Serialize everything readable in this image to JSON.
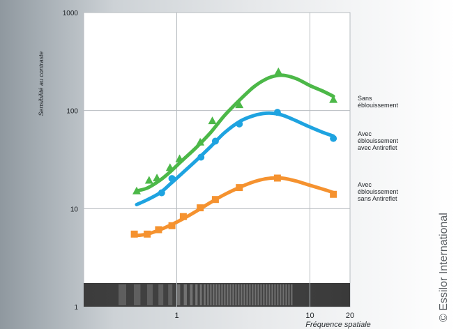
{
  "chart_data": {
    "type": "line",
    "xlabel": "Fréquence spatiale",
    "ylabel": "Sensibilité au contraste",
    "x_scale": "log",
    "y_scale": "log",
    "xlim": [
      0.2,
      20
    ],
    "ylim": [
      1,
      1000
    ],
    "x_ticks": [
      {
        "value": 1,
        "label": "1"
      },
      {
        "value": 10,
        "label": "10"
      },
      {
        "value": 20,
        "label": "20"
      }
    ],
    "y_ticks": [
      {
        "value": 1,
        "label": "1"
      },
      {
        "value": 10,
        "label": "10"
      },
      {
        "value": 100,
        "label": "100"
      },
      {
        "value": 1000,
        "label": "1000"
      }
    ],
    "grid": true,
    "series": [
      {
        "name_lines": [
          "Sans",
          "éblouissement"
        ],
        "color": "#4cb848",
        "marker": "triangle",
        "points": [
          [
            0.5,
            15.2
          ],
          [
            0.62,
            19.5
          ],
          [
            0.71,
            20.6
          ],
          [
            0.89,
            26.3
          ],
          [
            1.05,
            32.4
          ],
          [
            1.5,
            47.8
          ],
          [
            1.85,
            79
          ],
          [
            2.95,
            115
          ],
          [
            5.8,
            250
          ],
          [
            15,
            130
          ]
        ],
        "curve": [
          [
            0.5,
            15.2
          ],
          [
            0.6,
            16.2
          ],
          [
            0.75,
            19.5
          ],
          [
            0.9,
            24
          ],
          [
            1.1,
            31
          ],
          [
            1.4,
            42
          ],
          [
            1.8,
            60
          ],
          [
            2.3,
            90
          ],
          [
            3,
            130
          ],
          [
            3.8,
            175
          ],
          [
            4.7,
            210
          ],
          [
            5.6,
            227
          ],
          [
            6.5,
            228
          ],
          [
            8,
            210
          ],
          [
            10,
            180
          ],
          [
            12.5,
            158
          ],
          [
            15,
            140
          ]
        ]
      },
      {
        "name_lines": [
          "Avec",
          "éblouissement",
          "avec Antireflet"
        ],
        "color": "#1ea3e0",
        "marker": "circle",
        "points": [
          [
            0.77,
            14.5
          ],
          [
            0.92,
            20.3
          ],
          [
            1.52,
            33.5
          ],
          [
            1.95,
            48.8
          ],
          [
            2.95,
            73
          ],
          [
            5.7,
            96
          ],
          [
            15,
            52
          ]
        ],
        "curve": [
          [
            0.5,
            11
          ],
          [
            0.6,
            12.3
          ],
          [
            0.75,
            14.5
          ],
          [
            0.9,
            18
          ],
          [
            1.1,
            23
          ],
          [
            1.4,
            31
          ],
          [
            1.8,
            43
          ],
          [
            2.3,
            60
          ],
          [
            3,
            78
          ],
          [
            3.8,
            89
          ],
          [
            4.7,
            94
          ],
          [
            5.6,
            93
          ],
          [
            6.5,
            88
          ],
          [
            8,
            78
          ],
          [
            10,
            68
          ],
          [
            12.5,
            60
          ],
          [
            15,
            55
          ]
        ]
      },
      {
        "name_lines": [
          "Avec",
          "éblouissement",
          "sans Antireflet"
        ],
        "color": "#f5922f",
        "marker": "square",
        "points": [
          [
            0.48,
            5.5
          ],
          [
            0.6,
            5.5
          ],
          [
            0.73,
            6.1
          ],
          [
            0.92,
            6.7
          ],
          [
            1.12,
            8.3
          ],
          [
            1.5,
            10.2
          ],
          [
            1.95,
            12.4
          ],
          [
            2.95,
            16.4
          ],
          [
            5.7,
            20.5
          ],
          [
            15,
            14
          ]
        ],
        "curve": [
          [
            0.48,
            5.3
          ],
          [
            0.6,
            5.5
          ],
          [
            0.75,
            6.1
          ],
          [
            0.9,
            6.8
          ],
          [
            1.1,
            7.8
          ],
          [
            1.4,
            9.4
          ],
          [
            1.8,
            11.6
          ],
          [
            2.3,
            14
          ],
          [
            3,
            16.6
          ],
          [
            3.8,
            18.8
          ],
          [
            4.7,
            20.2
          ],
          [
            5.6,
            20.6
          ],
          [
            6.5,
            20.3
          ],
          [
            8,
            19
          ],
          [
            10,
            17.3
          ],
          [
            12.5,
            15.8
          ],
          [
            15,
            14.6
          ]
        ]
      }
    ]
  },
  "watermark": "© Essilor International"
}
